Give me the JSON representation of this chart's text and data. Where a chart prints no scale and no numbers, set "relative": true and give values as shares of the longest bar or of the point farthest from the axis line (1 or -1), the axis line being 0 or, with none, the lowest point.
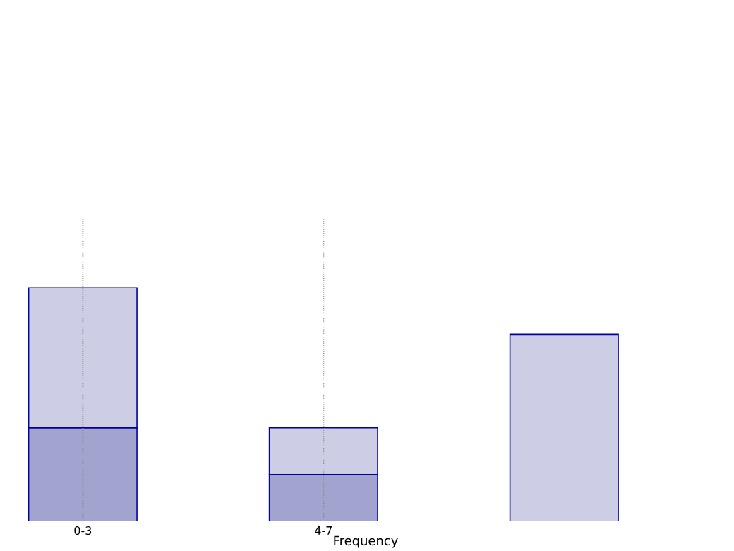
{
  "chart_data": {
    "type": "bar",
    "stacked": true,
    "relative": true,
    "xlabel": "Frequency",
    "categories": [
      "0-3",
      "4-7",
      null
    ],
    "series": [
      {
        "color": "#a3a3d0",
        "values": [
          0.4,
          0.2,
          null
        ]
      },
      {
        "color": "#cdcde5",
        "values": [
          0.6,
          0.2,
          0.8
        ]
      }
    ],
    "grid": "x"
  }
}
